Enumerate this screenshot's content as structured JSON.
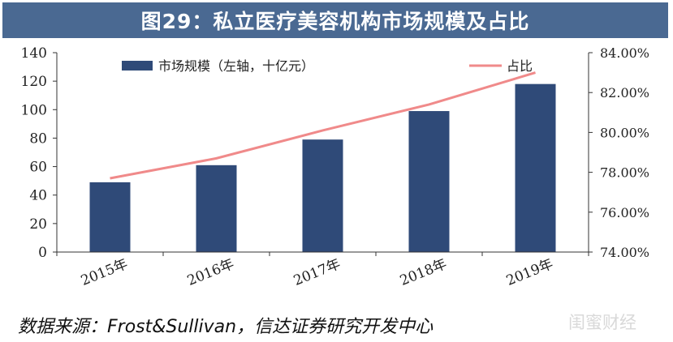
{
  "header": {
    "title": "图29：私立医疗美容机构市场规模及占比"
  },
  "footer": {
    "source": "数据来源：Frost&Sullivan，信达证券研究开发中心",
    "watermark": "闺蜜财经"
  },
  "colors": {
    "bar": "#2f4a78",
    "line": "#f08a8a",
    "title_bg": "#4a6992"
  },
  "chart_data": {
    "type": "bar+line",
    "title": "图29：私立医疗美容机构市场规模及占比",
    "categories": [
      "2015年",
      "2016年",
      "2017年",
      "2018年",
      "2019年"
    ],
    "series": [
      {
        "name": "市场规模（左轴，十亿元）",
        "type": "bar",
        "axis": "left",
        "values": [
          49,
          61,
          79,
          99,
          118
        ]
      },
      {
        "name": "占比",
        "type": "line",
        "axis": "right",
        "values": [
          77.7,
          78.7,
          80.1,
          81.4,
          83.0
        ]
      }
    ],
    "y_left": {
      "min": 0,
      "max": 140,
      "step": 20,
      "ticks": [
        "0",
        "20",
        "40",
        "60",
        "80",
        "100",
        "120",
        "140"
      ]
    },
    "y_right": {
      "min": 74,
      "max": 84,
      "step": 2,
      "ticks": [
        "74.00%",
        "76.00%",
        "78.00%",
        "80.00%",
        "82.00%",
        "84.00%"
      ]
    },
    "legend": {
      "placement": "top"
    },
    "grid": false
  }
}
